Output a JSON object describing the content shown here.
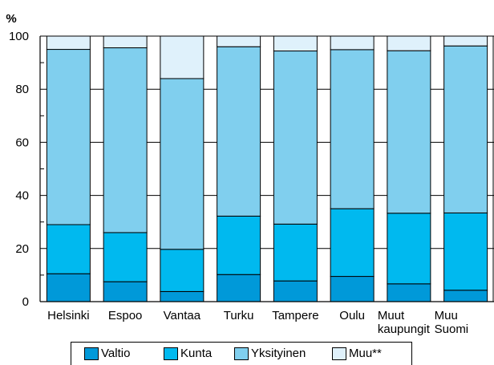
{
  "chart_data": {
    "type": "bar",
    "stacked": true,
    "unit_label": "%",
    "ylim": [
      0,
      100
    ],
    "yticks": [
      0,
      20,
      40,
      60,
      80,
      100
    ],
    "grid": true,
    "legend_position": "bottom",
    "categories": [
      [
        "Helsinki"
      ],
      [
        "Espoo"
      ],
      [
        "Vantaa"
      ],
      [
        "Turku"
      ],
      [
        "Tampere"
      ],
      [
        "Oulu"
      ],
      [
        "Muut",
        "kaupungit"
      ],
      [
        "Muu",
        "Suomi"
      ]
    ],
    "series": [
      {
        "name": "Valtio",
        "color": "#0099d9",
        "values": [
          10.5,
          7.5,
          3.8,
          10.2,
          7.8,
          9.5,
          6.7,
          4.3
        ]
      },
      {
        "name": "Kunta",
        "color": "#00b9ef",
        "values": [
          18.5,
          18.5,
          15.9,
          22.0,
          21.4,
          25.5,
          26.6,
          29.1
        ]
      },
      {
        "name": "Yksityinen",
        "color": "#80cfee",
        "values": [
          66.0,
          69.6,
          64.3,
          63.8,
          65.2,
          59.9,
          61.2,
          62.9
        ]
      },
      {
        "name": "Muu**",
        "color": "#dff1fb",
        "values": [
          5.0,
          4.4,
          16.0,
          4.0,
          5.6,
          5.1,
          5.5,
          3.7
        ]
      }
    ]
  }
}
